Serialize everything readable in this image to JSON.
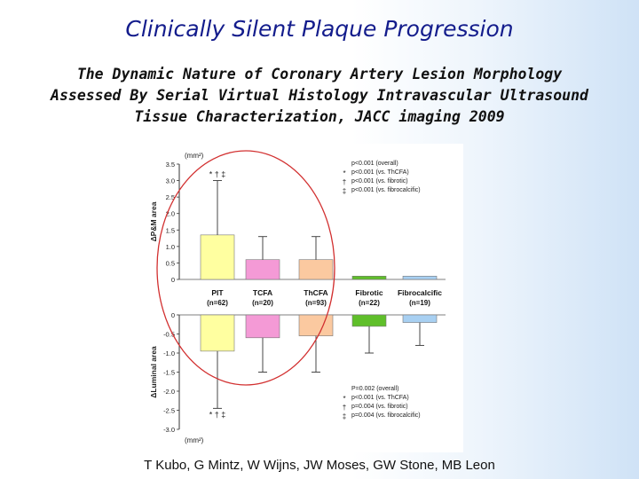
{
  "title": "Clinically Silent Plaque Progression",
  "subtitle_lines": [
    "The Dynamic Nature of Coronary Artery Lesion Morphology",
    "Assessed By Serial Virtual Histology Intravascular Ultrasound",
    "Tissue Characterization, JACC imaging 2009"
  ],
  "authors": "T Kubo, G Mintz, W Wijns, JW Moses, GW Stone, MB Leon",
  "chart_data": {
    "type": "bar",
    "categories": [
      "PIT",
      "TCFA",
      "ThCFA",
      "Fibrotic",
      "Fibrocalcific"
    ],
    "sample_sizes": [
      "(n=62)",
      "(n=20)",
      "(n=93)",
      "(n=22)",
      "(n=19)"
    ],
    "colors": [
      "#ffffa0",
      "#f49ad6",
      "#fbc9a0",
      "#5fbf2a",
      "#a8d0f2"
    ],
    "top_panel": {
      "ylabel": "ΔP&M area",
      "unit": "(mm²)",
      "ylim": [
        0,
        3.5
      ],
      "ticks": [
        "0",
        "0.5",
        "1.0",
        "1.5",
        "2.0",
        "2.5",
        "3.0",
        "3.5"
      ],
      "values": [
        1.35,
        0.6,
        0.6,
        0.1,
        0.1
      ],
      "error_upper": [
        3.0,
        1.3,
        1.3,
        null,
        null
      ],
      "markers": [
        "* † ‡",
        "",
        "",
        "",
        ""
      ],
      "stats": [
        {
          "sym": "",
          "text": "p<0.001 (overall)"
        },
        {
          "sym": "*",
          "text": "p<0.001 (vs. ThCFA)"
        },
        {
          "sym": "†",
          "text": "p<0.001 (vs. fibrotic)"
        },
        {
          "sym": "‡",
          "text": "p<0.001 (vs. fibrocalcific)"
        }
      ]
    },
    "bottom_panel": {
      "ylabel": "ΔLuminal area",
      "unit": "(mm²)",
      "ylim": [
        -3.0,
        0
      ],
      "ticks": [
        "0",
        "-0.5",
        "-1.0",
        "-1.5",
        "-2.0",
        "-2.5",
        "-3.0"
      ],
      "values": [
        -0.95,
        -0.6,
        -0.55,
        -0.3,
        -0.2
      ],
      "error_lower": [
        -2.45,
        -1.5,
        -1.5,
        -1.0,
        -0.8
      ],
      "markers": [
        "* † ‡",
        "",
        "",
        "",
        ""
      ],
      "stats": [
        {
          "sym": "",
          "text": "P=0.002 (overall)"
        },
        {
          "sym": "*",
          "text": "p<0.001 (vs. ThCFA)"
        },
        {
          "sym": "†",
          "text": "p=0.004 (vs. fibrotic)"
        },
        {
          "sym": "‡",
          "text": "p=0.004 (vs. fibrocalcific)"
        }
      ]
    }
  }
}
